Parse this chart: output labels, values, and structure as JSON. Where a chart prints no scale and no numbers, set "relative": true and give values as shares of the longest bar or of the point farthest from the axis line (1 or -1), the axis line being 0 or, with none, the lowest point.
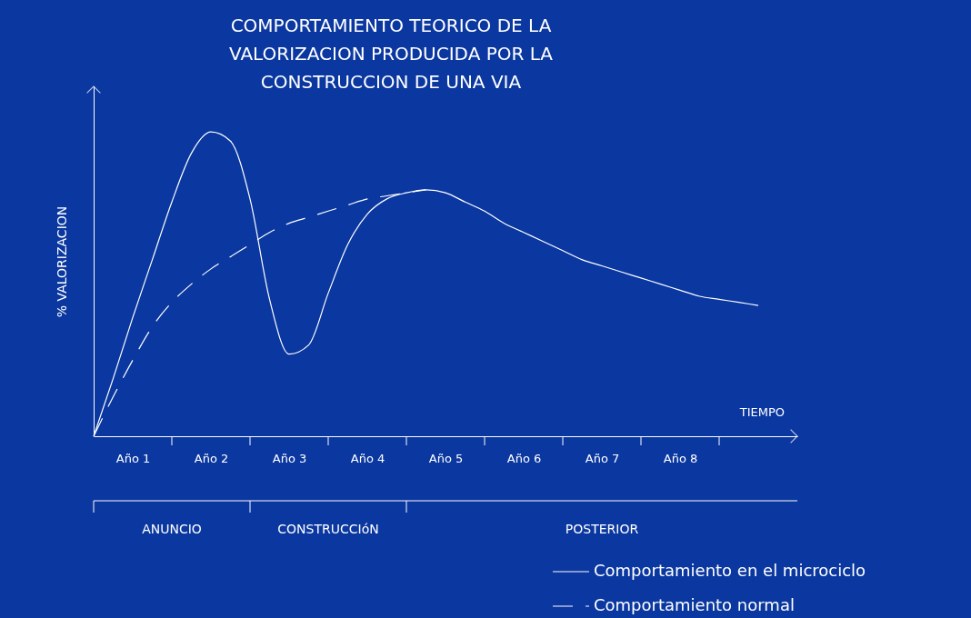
{
  "chart_data": {
    "type": "line",
    "relative": true,
    "title": "COMPORTAMIENTO TEORICO DE LA\nVALORIZACION PRODUCIDA POR LA\nCONSTRUCCION DE UNA VIA",
    "xlabel": "TIEMPO",
    "ylabel": "% VALORIZACION",
    "categories": [
      null,
      null,
      "Año 1",
      null,
      null,
      null,
      "Año 2",
      null,
      null,
      null,
      "Año 3",
      null,
      null,
      null,
      "Año 4",
      null,
      null,
      null,
      "Año 5",
      null,
      null,
      null,
      "Año 6",
      null,
      null,
      null,
      "Año 7",
      null,
      null,
      null,
      "Año 8",
      null,
      null,
      null,
      null,
      null,
      null
    ],
    "series": [
      {
        "name": "Comportamiento en el microciclo",
        "color": "#ffffff",
        "line_style": "solid",
        "values": [
          0,
          0.19,
          0.39,
          0.58,
          0.77,
          0.93,
          1.0,
          0.97,
          0.78,
          0.45,
          0.27,
          0.3,
          0.47,
          0.63,
          0.73,
          0.78,
          0.8,
          0.81,
          0.8,
          0.77,
          0.74,
          0.7,
          0.67,
          0.64,
          0.61,
          0.58,
          0.56,
          0.54,
          0.52,
          0.5,
          0.48,
          0.46,
          0.45,
          0.44,
          0.43,
          null,
          null
        ]
      },
      {
        "name": "Comportamiento normal",
        "color": "#ffffff",
        "line_style": "dashed",
        "values": [
          0,
          0.13,
          0.25,
          0.36,
          0.44,
          0.5,
          0.55,
          0.59,
          0.63,
          0.67,
          0.7,
          0.72,
          0.74,
          0.76,
          0.78,
          0.79,
          0.8,
          0.81,
          null,
          null,
          null,
          null,
          null,
          null,
          null,
          null,
          null,
          null,
          null,
          null,
          null,
          null,
          null,
          null,
          null,
          null,
          null
        ]
      }
    ],
    "annotations": [
      "ANUNCIO",
      "CONSTRUCCIóN",
      "POSTERIOR"
    ],
    "grid": false,
    "legend": "bottom right",
    "marker": "none"
  }
}
